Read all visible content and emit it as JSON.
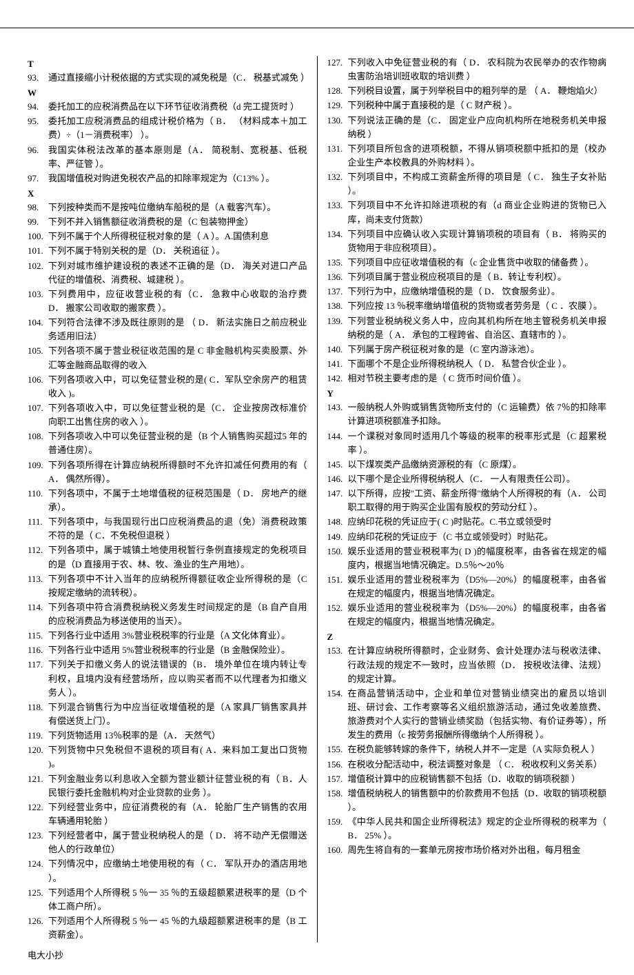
{
  "footer": "电大小抄",
  "sections_left": [
    {
      "letter": "T",
      "items": [
        {
          "n": "93.",
          "t": "通过直接缩小计税依据的方式实现的减免税是（C．  税基式减免  ）"
        }
      ]
    },
    {
      "letter": "W",
      "items": [
        {
          "n": "94.",
          "t": "委托加工的应税消费品在以下环节征收消费税（d 完工提货时  ）"
        },
        {
          "n": "95.",
          "t": "委托加工应税消费品的组成计税价格为（ B．  （材料成本＋加工费）÷（1－消费税率）  ）。"
        },
        {
          "n": "96.",
          "t": "我国实体税法改革的基本原则是（A．  简税制、宽税基、低税率、严征管   ）。"
        },
        {
          "n": "97.",
          "t": "我国增值税对购进免税农产品的扣除率规定为（C13%  ）。"
        }
      ]
    },
    {
      "letter": "X",
      "items": [
        {
          "n": "98.",
          "t": "下列按种类而不是按吨位缴纳车船税的是（A 载客汽车）。"
        },
        {
          "n": "99.",
          "t": "下列不并入销售额征收消费税的是（C 包装物押金）"
        },
        {
          "n": "100.",
          "t": "下列不属于个人所得税征税对象的是（  A  ）。A.国债利息"
        },
        {
          "n": "101.",
          "t": "下列不属于特别关税的是（D．  关税追征 ）。"
        },
        {
          "n": "102.",
          "t": "下列对城市维护建设税的表述不正确的是（D．  海关对进口产品代征的增值税、消费税、城建税   ）。"
        },
        {
          "n": "103.",
          "t": "下列费用中，应征收营业税的有（C．  急救中心收取的治疗费    D．  搬家公司收取的搬家费  ）。"
        },
        {
          "n": "104.",
          "t": "下列符合法律不涉及既往原则的是   （ D．  新法实施日之前应税业务适用旧法）"
        },
        {
          "n": "105.",
          "t": "下列各项不属于营业税征收范围的是 C 非金融机构买卖股票、外汇等金融商品取得的收入"
        },
        {
          "n": "106.",
          "t": "下列各项收入中，可以免征营业税的是(   C．军队空余房产的租赁收入  )。"
        },
        {
          "n": "107.",
          "t": "下列各项收入中，可以免征营业税的是（C．  企业按房改标准价向职工出售住房的收入  ）。"
        },
        {
          "n": "108.",
          "t": "下列各项收入中可以免征营业税的是（B 个人销售购买超过5 年的普通住房）。"
        },
        {
          "n": "109.",
          "t": "下列各项所得在计算应纳税所得额时不允许扣减任何费用的有（ A．  偶然所得）。"
        },
        {
          "n": "110.",
          "t": "下列各项中，不属于土地增值税的征税范围是（   D．  房地产的继承）。"
        },
        {
          "n": "111.",
          "t": "下列各项中，与我国现行出口应税消费品的退（免）消费税政策不符的是（  C．不免税但退税  ）"
        },
        {
          "n": "112.",
          "t": "下列各项中，属于城镇土地使用税暂行条例直接规定的免税项目的是（D 直接用于农、林、牧、渔业的生产用地）。"
        },
        {
          "n": "113.",
          "t": "下列各项中不计入当年的应纳税所得额征收企业所得税的是（C 按规定缴纳的流转税）。"
        },
        {
          "n": "114.",
          "t": "下列各项中符合消费税纳税义务发生时间规定的是（B 自产自用的应税消费品为移送使用的当天）。"
        },
        {
          "n": "115.",
          "t": "下列各行业中适用 3%营业税税率的行业是（A 文化体育业）。"
        },
        {
          "n": "116.",
          "t": "下列各行业中适用 5%营业税税率的行业是（B 金融保险业）。"
        },
        {
          "n": "117.",
          "t": "下列关于扣缴义务人的说法错误的（B．  境外单位在境内转让专利权，且境内没有经营场所，应以购买者而不以代理者为扣缴义务人  ）。"
        },
        {
          "n": "118.",
          "t": "下列混合销售行为中应当征收增值税的是（A 家具厂销售家具并有偿送货上门）。"
        },
        {
          "n": "119.",
          "t": "下列货物适用 13％税率的是（A．  天然气）"
        },
        {
          "n": "120.",
          "t": "下列货物中只免税但不退税的项目有(   A．来料加工复出口货物   )。"
        },
        {
          "n": "121.",
          "t": "下列金融业务以利息收入全额为营业额计征营业税的有（  B．人民银行委托金融机构对企业贷款的业务  ）。"
        },
        {
          "n": "122.",
          "t": "下列经营业务中，应征消费税的有（A．  轮胎厂生产销售的农用车辆通用轮胎  ）"
        },
        {
          "n": "123.",
          "t": "下列经营者中，属于营业税纳税人的是（ D．  将不动产无偿赠送他人的行政单位）"
        },
        {
          "n": "124.",
          "t": "下列情况中，应缴纳土地使用税的有（ C．  军队开办的酒店用地  ）。"
        },
        {
          "n": "125.",
          "t": "下列适用个人所得税 5 ％一 35 ％的五级超额累进税率的是（D 个体工商户所）。"
        },
        {
          "n": "126.",
          "t": "下列适用个人所得税 5 ％一 45 ％的九级超额累进税率的是（B 工资薪金）。"
        }
      ]
    }
  ],
  "sections_right": [
    {
      "letter": "",
      "items": [
        {
          "n": "127.",
          "t": "下列收入中免征营业税的有（ D．  农科院为农民举办的农作物病虫害防治培训班收取的培训费  ）"
        },
        {
          "n": "128.",
          "t": "下列税目设置，属于列举税目中的粗列举的是    （ A．  鞭炮焰火）"
        },
        {
          "n": "129.",
          "t": "下列税种中属于直接税的是（  C 财产税  ）。"
        },
        {
          "n": "130.",
          "t": "下列说法正确的是（C．  固定业户应向机构所在地税务机关申报纳税  ）"
        },
        {
          "n": "131.",
          "t": "下列项目所包含的进项税额，不得从销项税额中抵扣的是（校办企业生产本校教具的外购材料  ）。"
        },
        {
          "n": "132.",
          "t": "下列项目中，不构成工资薪金所得的项目是（ C．  独生子女补贴  ）。"
        },
        {
          "n": "133.",
          "t": "下列项目中不允许扣除进项税的有（d 商业企业购进的货物已入库，尚未支付货款）"
        },
        {
          "n": "134.",
          "t": "下列项目中应确认收入实现计算销项税的项目有（ B．  将购买的货物用于非应税项目）。"
        },
        {
          "n": "135.",
          "t": "下列项目中应征收增值税的有（c 企业售货中收取的储备费  ）。"
        },
        {
          "n": "136.",
          "t": "下列项目属于营业税应税项目的是（ B．转让专利权）。"
        },
        {
          "n": "137.",
          "t": "下列行为中，应缴纳增值税的是（ D．  饮食服务业）。"
        },
        {
          "n": "138.",
          "t": "下列应按 13 ％税率缴纳增值税的货物或者劳务是（ C ．农膜  ）。"
        },
        {
          "n": "139.",
          "t": "下列营业税纳税义务人中，应向其机构所在地主管税务机关申报纳税的是（ A．  承包的工程跨省、自治区、直辖市的  ）。"
        },
        {
          "n": "140.",
          "t": "下列属于房产税征税对象的是（C 室内游泳池）。"
        },
        {
          "n": "141.",
          "t": "下面哪个不是企业所得税纳税人（   D．  私营合伙企业  ）。"
        },
        {
          "n": "142.",
          "t": "相对节税主要考虑的是（  C 货币时间价值   ）。"
        }
      ]
    },
    {
      "letter": "Y",
      "items": [
        {
          "n": "143.",
          "t": "一般纳税人外购或销售货物所支付的（C 运输费）依 7％的扣除率计算进项税额准予扣除。"
        },
        {
          "n": "144.",
          "t": "一个课税对象同时适用几个等级的税率的税率形式是（C 超累税率  ）。"
        },
        {
          "n": "145.",
          "t": "以下煤炭类产品缴纳资源税的有（C 原煤）。"
        },
        {
          "n": "146.",
          "t": "以下哪个是企业所得税纳税人（C．  一人有限责任公司）。"
        },
        {
          "n": "147.",
          "t": "以下所得，应按\"工资、薪金所得\"缴纳个人所得税的有（A．  公司职工取得的用于购买企业国有股权的劳动分红   ）。"
        },
        {
          "n": "148.",
          "t": "应纳印花税的凭证应于(   C   )时贴花。C.书立或领受时"
        },
        {
          "n": "149.",
          "t": "应纳印花税的凭证应于（C 书立或领受时）时贴花。"
        },
        {
          "n": "150.",
          "t": "娱乐业适用的营业税税率为(   D   )的幅度税率，由各省在规定的幅度内，根据当地情况确定。D.5％～20％"
        },
        {
          "n": "151.",
          "t": "娱乐业适用的营业税税率为（D5%—20%）的幅度税率，由各省在规定的幅度内，根据当地情况确定。"
        },
        {
          "n": "152.",
          "t": "娱乐业适用的营业税税率为（D5%—20%）的幅度税率，由各省在规定的幅度内，根据当地情况确定。"
        }
      ]
    },
    {
      "letter": "Z",
      "items": [
        {
          "n": "153.",
          "t": "在计算应纳税所得额时，企业财务、会计处理办法与税收法律、行政法规的规定不一致时，应当依照（D．  按税收法律、法规）的规定计算。"
        },
        {
          "n": "154.",
          "t": "在商品营销活动中，企业和单位对营销业绩突出的雇员以培训班、研讨会、工作考察等名义组织旅游活动，通过免收差旅费、旅游费对个人实行的营销业绩奖励（包括实物、有价证券等），所发生的费用（c 按劳务报酬所得缴纳个人所得税  ）。"
        },
        {
          "n": "155.",
          "t": "在税负能够转嫁的条件下，纳税人并不一定是（A 实际负税人  ）"
        },
        {
          "n": "156.",
          "t": "在税收分配活动中，税法调整对象是   （ C．  税收权利义务关系）"
        },
        {
          "n": "157.",
          "t": "增值税计算中的应税销售额不包括（D．收取的销项税额  ）"
        },
        {
          "n": "158.",
          "t": "增值税纳税人的销售额中的价款费用不包括（D．收取的销项税额  ）。"
        },
        {
          "n": "159.",
          "t": "《中华人民共和国企业所得税法》规定的企业所得税的税率为（ B．  25%  ）。"
        },
        {
          "n": "160.",
          "t": "周先生将自有的一套单元房按市场价格对外出租，每月租金"
        }
      ]
    }
  ]
}
